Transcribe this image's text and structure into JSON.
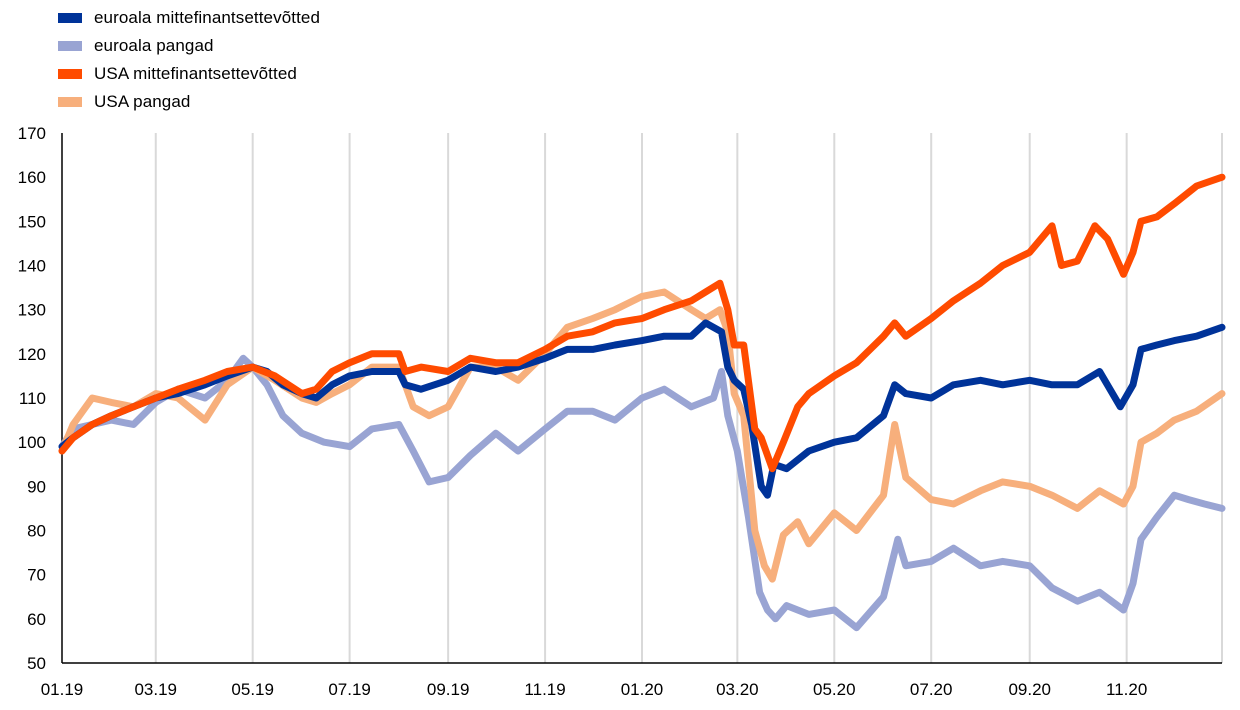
{
  "chart_data": {
    "type": "line",
    "title": "",
    "xlabel": "",
    "ylabel": "",
    "ylim": [
      50,
      170
    ],
    "yticks": [
      50,
      60,
      70,
      80,
      90,
      100,
      110,
      120,
      130,
      140,
      150,
      160,
      170
    ],
    "xlim": [
      "2019-01-01",
      "2020-12-31"
    ],
    "xticks": [
      {
        "date": "2019-01-01",
        "label": "01.19"
      },
      {
        "date": "2019-03-01",
        "label": "03.19"
      },
      {
        "date": "2019-05-01",
        "label": "05.19"
      },
      {
        "date": "2019-07-01",
        "label": "07.19"
      },
      {
        "date": "2019-09-01",
        "label": "09.19"
      },
      {
        "date": "2019-11-01",
        "label": "11.19"
      },
      {
        "date": "2020-01-01",
        "label": "01.20"
      },
      {
        "date": "2020-03-01",
        "label": "03.20"
      },
      {
        "date": "2020-05-01",
        "label": "05.20"
      },
      {
        "date": "2020-07-01",
        "label": "07.20"
      },
      {
        "date": "2020-09-01",
        "label": "09.20"
      },
      {
        "date": "2020-11-01",
        "label": "11.20"
      }
    ],
    "grid": "vertical",
    "legend_position": "top-left",
    "series": [
      {
        "name": "euroala mittefinantsettevõtted",
        "color": "#003399",
        "points": [
          [
            "2019-01-01",
            99
          ],
          [
            "2019-01-08",
            101
          ],
          [
            "2019-01-20",
            104
          ],
          [
            "2019-02-01",
            106
          ],
          [
            "2019-02-15",
            108
          ],
          [
            "2019-03-01",
            110
          ],
          [
            "2019-03-15",
            111
          ],
          [
            "2019-04-01",
            113
          ],
          [
            "2019-04-15",
            115
          ],
          [
            "2019-05-01",
            117
          ],
          [
            "2019-05-10",
            116
          ],
          [
            "2019-05-20",
            113
          ],
          [
            "2019-06-01",
            111
          ],
          [
            "2019-06-10",
            110
          ],
          [
            "2019-06-20",
            113
          ],
          [
            "2019-07-01",
            115
          ],
          [
            "2019-07-15",
            116
          ],
          [
            "2019-08-01",
            116
          ],
          [
            "2019-08-05",
            113
          ],
          [
            "2019-08-15",
            112
          ],
          [
            "2019-09-01",
            114
          ],
          [
            "2019-09-15",
            117
          ],
          [
            "2019-10-01",
            116
          ],
          [
            "2019-10-15",
            117
          ],
          [
            "2019-11-01",
            119
          ],
          [
            "2019-11-15",
            121
          ],
          [
            "2019-12-01",
            121
          ],
          [
            "2019-12-15",
            122
          ],
          [
            "2020-01-01",
            123
          ],
          [
            "2020-01-15",
            124
          ],
          [
            "2020-02-01",
            124
          ],
          [
            "2020-02-10",
            127
          ],
          [
            "2020-02-20",
            125
          ],
          [
            "2020-02-24",
            117
          ],
          [
            "2020-02-28",
            114
          ],
          [
            "2020-03-05",
            112
          ],
          [
            "2020-03-10",
            104
          ],
          [
            "2020-03-16",
            90
          ],
          [
            "2020-03-20",
            88
          ],
          [
            "2020-03-24",
            95
          ],
          [
            "2020-04-01",
            94
          ],
          [
            "2020-04-15",
            98
          ],
          [
            "2020-05-01",
            100
          ],
          [
            "2020-05-15",
            101
          ],
          [
            "2020-06-01",
            106
          ],
          [
            "2020-06-08",
            113
          ],
          [
            "2020-06-15",
            111
          ],
          [
            "2020-07-01",
            110
          ],
          [
            "2020-07-15",
            113
          ],
          [
            "2020-08-01",
            114
          ],
          [
            "2020-08-15",
            113
          ],
          [
            "2020-09-01",
            114
          ],
          [
            "2020-09-15",
            113
          ],
          [
            "2020-10-01",
            113
          ],
          [
            "2020-10-15",
            116
          ],
          [
            "2020-10-28",
            108
          ],
          [
            "2020-11-05",
            113
          ],
          [
            "2020-11-10",
            121
          ],
          [
            "2020-11-20",
            122
          ],
          [
            "2020-12-01",
            123
          ],
          [
            "2020-12-15",
            124
          ],
          [
            "2020-12-31",
            126
          ]
        ]
      },
      {
        "name": "euroala pangad",
        "color": "#99A4D3",
        "points": [
          [
            "2019-01-01",
            99
          ],
          [
            "2019-01-08",
            103
          ],
          [
            "2019-01-20",
            104
          ],
          [
            "2019-02-01",
            105
          ],
          [
            "2019-02-15",
            104
          ],
          [
            "2019-03-01",
            109
          ],
          [
            "2019-03-15",
            112
          ],
          [
            "2019-04-01",
            110
          ],
          [
            "2019-04-15",
            114
          ],
          [
            "2019-04-25",
            119
          ],
          [
            "2019-05-01",
            117
          ],
          [
            "2019-05-10",
            113
          ],
          [
            "2019-05-20",
            106
          ],
          [
            "2019-06-01",
            102
          ],
          [
            "2019-06-15",
            100
          ],
          [
            "2019-07-01",
            99
          ],
          [
            "2019-07-15",
            103
          ],
          [
            "2019-08-01",
            104
          ],
          [
            "2019-08-10",
            98
          ],
          [
            "2019-08-20",
            91
          ],
          [
            "2019-09-01",
            92
          ],
          [
            "2019-09-15",
            97
          ],
          [
            "2019-10-01",
            102
          ],
          [
            "2019-10-15",
            98
          ],
          [
            "2019-11-01",
            103
          ],
          [
            "2019-11-15",
            107
          ],
          [
            "2019-12-01",
            107
          ],
          [
            "2019-12-15",
            105
          ],
          [
            "2020-01-01",
            110
          ],
          [
            "2020-01-15",
            112
          ],
          [
            "2020-02-01",
            108
          ],
          [
            "2020-02-15",
            110
          ],
          [
            "2020-02-20",
            116
          ],
          [
            "2020-02-24",
            106
          ],
          [
            "2020-03-01",
            98
          ],
          [
            "2020-03-08",
            83
          ],
          [
            "2020-03-15",
            66
          ],
          [
            "2020-03-20",
            62
          ],
          [
            "2020-03-25",
            60
          ],
          [
            "2020-04-01",
            63
          ],
          [
            "2020-04-15",
            61
          ],
          [
            "2020-05-01",
            62
          ],
          [
            "2020-05-15",
            58
          ],
          [
            "2020-06-01",
            65
          ],
          [
            "2020-06-10",
            78
          ],
          [
            "2020-06-15",
            72
          ],
          [
            "2020-07-01",
            73
          ],
          [
            "2020-07-15",
            76
          ],
          [
            "2020-08-01",
            72
          ],
          [
            "2020-08-15",
            73
          ],
          [
            "2020-09-01",
            72
          ],
          [
            "2020-09-15",
            67
          ],
          [
            "2020-10-01",
            64
          ],
          [
            "2020-10-15",
            66
          ],
          [
            "2020-10-30",
            62
          ],
          [
            "2020-11-05",
            68
          ],
          [
            "2020-11-10",
            78
          ],
          [
            "2020-11-20",
            83
          ],
          [
            "2020-12-01",
            88
          ],
          [
            "2020-12-10",
            87
          ],
          [
            "2020-12-20",
            86
          ],
          [
            "2020-12-31",
            85
          ]
        ]
      },
      {
        "name": "USA mittefinantsettevõtted",
        "color": "#FF4B00",
        "points": [
          [
            "2019-01-01",
            98
          ],
          [
            "2019-01-08",
            101
          ],
          [
            "2019-01-20",
            104
          ],
          [
            "2019-02-01",
            106
          ],
          [
            "2019-02-15",
            108
          ],
          [
            "2019-03-01",
            110
          ],
          [
            "2019-03-15",
            112
          ],
          [
            "2019-04-01",
            114
          ],
          [
            "2019-04-15",
            116
          ],
          [
            "2019-05-01",
            117
          ],
          [
            "2019-05-15",
            115
          ],
          [
            "2019-06-01",
            111
          ],
          [
            "2019-06-10",
            112
          ],
          [
            "2019-06-20",
            116
          ],
          [
            "2019-07-01",
            118
          ],
          [
            "2019-07-15",
            120
          ],
          [
            "2019-08-01",
            120
          ],
          [
            "2019-08-05",
            116
          ],
          [
            "2019-08-15",
            117
          ],
          [
            "2019-09-01",
            116
          ],
          [
            "2019-09-15",
            119
          ],
          [
            "2019-10-01",
            118
          ],
          [
            "2019-10-15",
            118
          ],
          [
            "2019-11-01",
            121
          ],
          [
            "2019-11-15",
            124
          ],
          [
            "2019-12-01",
            125
          ],
          [
            "2019-12-15",
            127
          ],
          [
            "2020-01-01",
            128
          ],
          [
            "2020-01-15",
            130
          ],
          [
            "2020-02-01",
            132
          ],
          [
            "2020-02-10",
            134
          ],
          [
            "2020-02-19",
            136
          ],
          [
            "2020-02-24",
            130
          ],
          [
            "2020-02-28",
            122
          ],
          [
            "2020-03-05",
            122
          ],
          [
            "2020-03-12",
            103
          ],
          [
            "2020-03-16",
            101
          ],
          [
            "2020-03-23",
            94
          ],
          [
            "2020-03-30",
            100
          ],
          [
            "2020-04-08",
            108
          ],
          [
            "2020-04-15",
            111
          ],
          [
            "2020-05-01",
            115
          ],
          [
            "2020-05-15",
            118
          ],
          [
            "2020-06-01",
            124
          ],
          [
            "2020-06-08",
            127
          ],
          [
            "2020-06-15",
            124
          ],
          [
            "2020-07-01",
            128
          ],
          [
            "2020-07-15",
            132
          ],
          [
            "2020-08-01",
            136
          ],
          [
            "2020-08-15",
            140
          ],
          [
            "2020-09-01",
            143
          ],
          [
            "2020-09-15",
            149
          ],
          [
            "2020-09-21",
            140
          ],
          [
            "2020-10-01",
            141
          ],
          [
            "2020-10-12",
            149
          ],
          [
            "2020-10-20",
            146
          ],
          [
            "2020-10-30",
            138
          ],
          [
            "2020-11-05",
            143
          ],
          [
            "2020-11-10",
            150
          ],
          [
            "2020-11-20",
            151
          ],
          [
            "2020-12-01",
            154
          ],
          [
            "2020-12-15",
            158
          ],
          [
            "2020-12-31",
            160
          ]
        ]
      },
      {
        "name": "USA pangad",
        "color": "#F7AF7C",
        "points": [
          [
            "2019-01-01",
            98
          ],
          [
            "2019-01-08",
            104
          ],
          [
            "2019-01-20",
            110
          ],
          [
            "2019-02-01",
            109
          ],
          [
            "2019-02-15",
            108
          ],
          [
            "2019-03-01",
            111
          ],
          [
            "2019-03-15",
            110
          ],
          [
            "2019-04-01",
            105
          ],
          [
            "2019-04-15",
            113
          ],
          [
            "2019-05-01",
            117
          ],
          [
            "2019-05-15",
            114
          ],
          [
            "2019-06-01",
            110
          ],
          [
            "2019-06-10",
            109
          ],
          [
            "2019-06-20",
            111
          ],
          [
            "2019-07-01",
            113
          ],
          [
            "2019-07-15",
            117
          ],
          [
            "2019-08-01",
            117
          ],
          [
            "2019-08-10",
            108
          ],
          [
            "2019-08-20",
            106
          ],
          [
            "2019-09-01",
            108
          ],
          [
            "2019-09-15",
            117
          ],
          [
            "2019-10-01",
            117
          ],
          [
            "2019-10-15",
            114
          ],
          [
            "2019-11-01",
            120
          ],
          [
            "2019-11-15",
            126
          ],
          [
            "2019-12-01",
            128
          ],
          [
            "2019-12-15",
            130
          ],
          [
            "2020-01-01",
            133
          ],
          [
            "2020-01-15",
            134
          ],
          [
            "2020-02-01",
            130
          ],
          [
            "2020-02-10",
            128
          ],
          [
            "2020-02-19",
            130
          ],
          [
            "2020-02-24",
            125
          ],
          [
            "2020-02-28",
            111
          ],
          [
            "2020-03-05",
            106
          ],
          [
            "2020-03-12",
            80
          ],
          [
            "2020-03-18",
            72
          ],
          [
            "2020-03-23",
            69
          ],
          [
            "2020-03-30",
            79
          ],
          [
            "2020-04-08",
            82
          ],
          [
            "2020-04-15",
            77
          ],
          [
            "2020-05-01",
            84
          ],
          [
            "2020-05-15",
            80
          ],
          [
            "2020-06-01",
            88
          ],
          [
            "2020-06-08",
            104
          ],
          [
            "2020-06-15",
            92
          ],
          [
            "2020-07-01",
            87
          ],
          [
            "2020-07-15",
            86
          ],
          [
            "2020-08-01",
            89
          ],
          [
            "2020-08-15",
            91
          ],
          [
            "2020-09-01",
            90
          ],
          [
            "2020-09-15",
            88
          ],
          [
            "2020-10-01",
            85
          ],
          [
            "2020-10-15",
            89
          ],
          [
            "2020-10-30",
            86
          ],
          [
            "2020-11-05",
            90
          ],
          [
            "2020-11-10",
            100
          ],
          [
            "2020-11-20",
            102
          ],
          [
            "2020-12-01",
            105
          ],
          [
            "2020-12-15",
            107
          ],
          [
            "2020-12-31",
            111
          ]
        ]
      }
    ]
  }
}
